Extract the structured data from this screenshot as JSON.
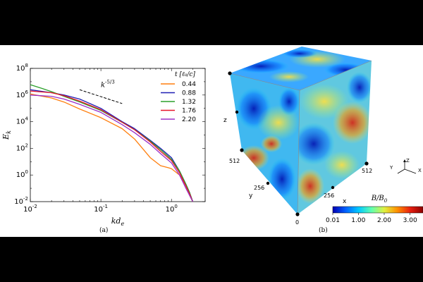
{
  "figure": {
    "panels": [
      {
        "caption": "(a)",
        "chart_data": {
          "type": "line",
          "title": "",
          "xlabel": "kd_e",
          "ylabel": "E_k",
          "x_scale": "log",
          "y_scale": "log",
          "xlim": [
            0.01,
            3.0
          ],
          "ylim": [
            0.01,
            100000000
          ],
          "x_ticks": [
            "10^-2",
            "10^-1",
            "10^0"
          ],
          "y_ticks": [
            "10^-2",
            "10^0",
            "10^2",
            "10^4",
            "10^6",
            "10^8"
          ],
          "legend_title": "t [ℓ₀/c]",
          "legend_position": "top-right",
          "slope_annotation": {
            "label": "k^-5/3",
            "x": [
              0.05,
              0.2
            ],
            "y": [
              2500000,
              230000
            ]
          },
          "series": [
            {
              "name": "0.44",
              "color": "#ff7f0e",
              "x": [
                0.01,
                0.02,
                0.03,
                0.05,
                0.1,
                0.2,
                0.3,
                0.5,
                0.7,
                0.9,
                1.0,
                1.3,
                1.6,
                1.8,
                2.0
              ],
              "y": [
                1200000,
                600000,
                300000,
                90000,
                20000,
                3000,
                500,
                20,
                5,
                3.5,
                3,
                1,
                0.15,
                0.03,
                0.01
              ]
            },
            {
              "name": "0.88",
              "color": "#1f1fb4",
              "x": [
                0.01,
                0.02,
                0.03,
                0.05,
                0.1,
                0.2,
                0.3,
                0.5,
                0.7,
                1.0,
                1.3,
                1.6,
                1.8,
                2.0
              ],
              "y": [
                2500000,
                1500000,
                1000000,
                500000,
                100000,
                10000,
                3000,
                400,
                100,
                20,
                2,
                0.2,
                0.05,
                0.01
              ]
            },
            {
              "name": "1.32",
              "color": "#2ca02c",
              "x": [
                0.01,
                0.015,
                0.02,
                0.03,
                0.05,
                0.1,
                0.2,
                0.3,
                0.5,
                0.7,
                1.0,
                1.3,
                1.6,
                1.8,
                2.0
              ],
              "y": [
                6000000,
                3000000,
                1800000,
                800000,
                300000,
                70000,
                9000,
                2500,
                350,
                80,
                15,
                2,
                0.2,
                0.05,
                0.01
              ]
            },
            {
              "name": "1.76",
              "color": "#e8152a",
              "x": [
                0.01,
                0.02,
                0.03,
                0.05,
                0.1,
                0.2,
                0.3,
                0.5,
                0.7,
                1.0,
                1.3,
                1.6,
                1.8,
                2.0
              ],
              "y": [
                2000000,
                1500000,
                900000,
                350000,
                80000,
                9000,
                2500,
                300,
                60,
                12,
                1.5,
                0.15,
                0.04,
                0.01
              ]
            },
            {
              "name": "2.20",
              "color": "#9b30c8",
              "x": [
                0.01,
                0.02,
                0.03,
                0.05,
                0.1,
                0.2,
                0.3,
                0.5,
                0.7,
                1.0,
                1.3,
                1.6,
                1.8,
                2.0
              ],
              "y": [
                1000000,
                800000,
                500000,
                200000,
                50000,
                6000,
                1500,
                200,
                40,
                8,
                1,
                0.1,
                0.03,
                0.01
              ]
            }
          ]
        }
      },
      {
        "caption": "(b)",
        "colorbar": {
          "label": "B/B_0",
          "range": [
            0.01,
            3.5
          ],
          "ticks": [
            "0.01",
            "1.00",
            "2.00",
            "3.00"
          ],
          "colors": [
            "#0000b4",
            "#0060ff",
            "#00c8ff",
            "#60ffb0",
            "#e0f040",
            "#ff9000",
            "#e82010",
            "#8c0000"
          ]
        },
        "cube_axes": {
          "z_label": "z",
          "y_label": "y",
          "x_label": "x",
          "y_ticks": [
            "512",
            "256"
          ],
          "x_ticks": [
            "256",
            "512"
          ],
          "origin_label": "0"
        },
        "orientation_axes": [
          "Z",
          "Y",
          "X"
        ]
      }
    ]
  }
}
